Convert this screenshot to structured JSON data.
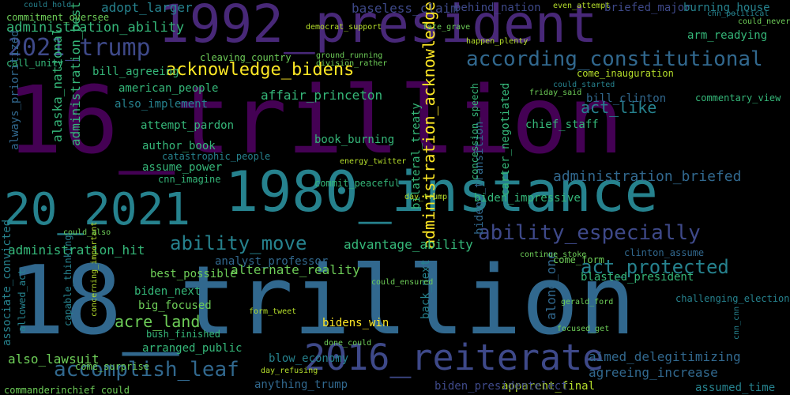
{
  "palette": {
    "background": "#000000",
    "dark_purple": "#440154",
    "purple": "#482878",
    "indigo": "#3e4989",
    "blue": "#31688e",
    "teal": "#26828e",
    "green_teal": "#1f9e89",
    "green": "#35b779",
    "light_green": "#6ece58",
    "lime": "#b5de2b",
    "yellow": "#fde725"
  },
  "words": [
    {
      "text": "16_trillion",
      "color": "#440154"
    },
    {
      "text": "18_trillion",
      "color": "#31688e"
    },
    {
      "text": "1992_president",
      "color": "#482878"
    },
    {
      "text": "1980_instance",
      "color": "#26828e"
    },
    {
      "text": "20_2021",
      "color": "#26828e"
    },
    {
      "text": "2016_reiterate",
      "color": "#3e4989"
    },
    {
      "text": "2021_trump",
      "color": "#3e4989"
    },
    {
      "text": "according_constitutional",
      "color": "#31688e"
    },
    {
      "text": "acknowledge_bidens",
      "color": "#fde725"
    },
    {
      "text": "ability_especially",
      "color": "#3e4989"
    },
    {
      "text": "ability_move",
      "color": "#26828e"
    },
    {
      "text": "accomplish_leaf",
      "color": "#31688e"
    },
    {
      "text": "act_protected",
      "color": "#26828e"
    },
    {
      "text": "administration_acknowledge",
      "color": "#fde725"
    },
    {
      "text": "administration_ability",
      "color": "#35b779"
    },
    {
      "text": "administration_briefed",
      "color": "#31688e"
    },
    {
      "text": "administration_hit",
      "color": "#35b779"
    },
    {
      "text": "administration_best",
      "color": "#35b779"
    },
    {
      "text": "acre_land",
      "color": "#6ece58"
    },
    {
      "text": "act_like",
      "color": "#26828e"
    },
    {
      "text": "adopt_larger",
      "color": "#26828e"
    },
    {
      "text": "affair_princeton",
      "color": "#35b779"
    },
    {
      "text": "advantage_ability",
      "color": "#35b779"
    },
    {
      "text": "aimed_delegitimizing",
      "color": "#31688e"
    },
    {
      "text": "agreeing_increase",
      "color": "#31688e"
    },
    {
      "text": "alaska_national",
      "color": "#35b779"
    },
    {
      "text": "always_prioritized",
      "color": "#31688e"
    },
    {
      "text": "alternate_reality",
      "color": "#6ece58"
    },
    {
      "text": "american_people",
      "color": "#35b779"
    },
    {
      "text": "also_implement",
      "color": "#26828e"
    },
    {
      "text": "also_lawsuit",
      "color": "#6ece58"
    },
    {
      "text": "along_one",
      "color": "#31688e"
    },
    {
      "text": "analyst_professor",
      "color": "#31688e"
    },
    {
      "text": "apparent_final",
      "color": "#b5de2b"
    },
    {
      "text": "anything_trump",
      "color": "#31688e"
    },
    {
      "text": "arm_readying",
      "color": "#35b779"
    },
    {
      "text": "arranged_public",
      "color": "#35b779"
    },
    {
      "text": "associate_convicted",
      "color": "#26828e"
    },
    {
      "text": "assume_power",
      "color": "#35b779"
    },
    {
      "text": "assumed_time",
      "color": "#26828e"
    },
    {
      "text": "attempt_pardon",
      "color": "#35b779"
    },
    {
      "text": "author_book",
      "color": "#35b779"
    },
    {
      "text": "baseless_claim",
      "color": "#3e4989"
    },
    {
      "text": "behind_nation",
      "color": "#3e4989"
    },
    {
      "text": "best_possible",
      "color": "#6ece58"
    },
    {
      "text": "bidens_transition",
      "color": "#31688e"
    },
    {
      "text": "bidens_win",
      "color": "#fde725"
    },
    {
      "text": "biden_next",
      "color": "#35b779"
    },
    {
      "text": "biden_impressive",
      "color": "#35b779"
    },
    {
      "text": "biden_presidentelect",
      "color": "#3e4989"
    },
    {
      "text": "big_focused",
      "color": "#6ece58"
    },
    {
      "text": "bilateral_treaty",
      "color": "#35b779"
    },
    {
      "text": "bill_agreeing",
      "color": "#35b779"
    },
    {
      "text": "bill_clinton",
      "color": "#31688e"
    },
    {
      "text": "blasted_president",
      "color": "#35b779"
    },
    {
      "text": "blow_economy",
      "color": "#26828e"
    },
    {
      "text": "book_burning",
      "color": "#35b779"
    },
    {
      "text": "briefed_major",
      "color": "#3e4989"
    },
    {
      "text": "burning_house",
      "color": "#26828e"
    },
    {
      "text": "bush_finished",
      "color": "#35b779"
    },
    {
      "text": "back_next",
      "color": "#26828e"
    },
    {
      "text": "call_unity",
      "color": "#35b779"
    },
    {
      "text": "capable_thinking",
      "color": "#26828e"
    },
    {
      "text": "carter_negotiated",
      "color": "#35b779"
    },
    {
      "text": "catastrophic_people",
      "color": "#26828e"
    },
    {
      "text": "challenging_election",
      "color": "#26828e"
    },
    {
      "text": "chief_staff",
      "color": "#35b779"
    },
    {
      "text": "cleaving_country",
      "color": "#6ece58"
    },
    {
      "text": "cnn_imagine",
      "color": "#35b779"
    },
    {
      "text": "come_surprise",
      "color": "#6ece58"
    },
    {
      "text": "come_form",
      "color": "#6ece58"
    },
    {
      "text": "come_inauguration",
      "color": "#b5de2b"
    },
    {
      "text": "commentary_view",
      "color": "#35b779"
    },
    {
      "text": "commit_peaceful",
      "color": "#35b779"
    },
    {
      "text": "commitment_oversee",
      "color": "#6ece58"
    },
    {
      "text": "commanderinchief_could",
      "color": "#6ece58"
    },
    {
      "text": "concession_speech",
      "color": "#35b779"
    },
    {
      "text": "allowed_act",
      "color": "#26828e"
    },
    {
      "text": "cnn_political",
      "color": "#26828e"
    },
    {
      "text": "concerning_important",
      "color": "#b5de2b"
    },
    {
      "text": "cnn_cnn",
      "color": "#26828e"
    },
    {
      "text": "democrat_support",
      "color": "#b5de2b"
    },
    {
      "text": "clinton_assume",
      "color": "#31688e"
    },
    {
      "text": "could_also",
      "color": "#6ece58"
    },
    {
      "text": "could_hold",
      "color": "#26828e"
    },
    {
      "text": "could_ensured",
      "color": "#6ece58"
    },
    {
      "text": "fate_grave",
      "color": "#6ece58"
    },
    {
      "text": "energy_twitter",
      "color": "#b5de2b"
    },
    {
      "text": "happen_plenty",
      "color": "#b5de2b"
    },
    {
      "text": "ground_running",
      "color": "#6ece58"
    },
    {
      "text": "division_rather",
      "color": "#6ece58"
    },
    {
      "text": "continue_stoke",
      "color": "#6ece58"
    },
    {
      "text": "form_tweet",
      "color": "#b5de2b"
    },
    {
      "text": "done_could",
      "color": "#6ece58"
    },
    {
      "text": "focused_get",
      "color": "#6ece58"
    },
    {
      "text": "gerald_ford",
      "color": "#6ece58"
    },
    {
      "text": "even_attempt",
      "color": "#b5de2b"
    },
    {
      "text": "day_refusing",
      "color": "#b5de2b"
    },
    {
      "text": "day_trump",
      "color": "#b5de2b"
    },
    {
      "text": "friday_said",
      "color": "#6ece58"
    },
    {
      "text": "could_started",
      "color": "#26828e"
    },
    {
      "text": "could_never",
      "color": "#6ece58"
    }
  ]
}
